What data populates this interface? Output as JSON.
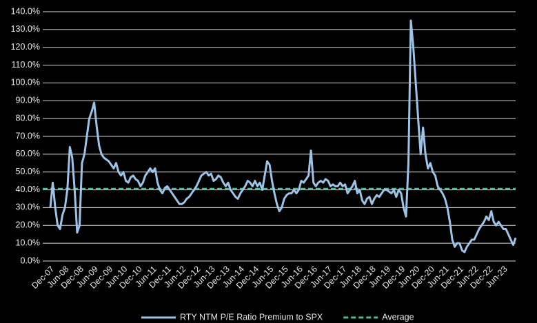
{
  "chart_data": {
    "type": "line",
    "categories": [
      "Dec-07",
      null,
      null,
      null,
      null,
      null,
      "Jun-08",
      null,
      null,
      null,
      null,
      null,
      "Dec-08",
      null,
      null,
      null,
      null,
      null,
      "Jun-09",
      null,
      null,
      null,
      null,
      null,
      "Dec-09",
      null,
      null,
      null,
      null,
      null,
      "Jun-10",
      null,
      null,
      null,
      null,
      null,
      "Dec-10",
      null,
      null,
      null,
      null,
      null,
      "Jun-11",
      null,
      null,
      null,
      null,
      null,
      "Dec-11",
      null,
      null,
      null,
      null,
      null,
      "Jun-12",
      null,
      null,
      null,
      null,
      null,
      "Dec-12",
      null,
      null,
      null,
      null,
      null,
      "Jun-13",
      null,
      null,
      null,
      null,
      null,
      "Dec-13",
      null,
      null,
      null,
      null,
      null,
      "Jun-14",
      null,
      null,
      null,
      null,
      null,
      "Dec-14",
      null,
      null,
      null,
      null,
      null,
      "Jun-15",
      null,
      null,
      null,
      null,
      null,
      "Dec-15",
      null,
      null,
      null,
      null,
      null,
      "Jun-16",
      null,
      null,
      null,
      null,
      null,
      "Dec-16",
      null,
      null,
      null,
      null,
      null,
      "Jun-17",
      null,
      null,
      null,
      null,
      null,
      "Dec-17",
      null,
      null,
      null,
      null,
      null,
      "Jun-18",
      null,
      null,
      null,
      null,
      null,
      "Dec-18",
      null,
      null,
      null,
      null,
      null,
      "Jun-19",
      null,
      null,
      null,
      null,
      null,
      "Dec-19",
      null,
      null,
      null,
      null,
      null,
      "Jun-20",
      null,
      null,
      null,
      null,
      null,
      "Dec-20",
      null,
      null,
      null,
      null,
      null,
      "Jun-21",
      null,
      null,
      null,
      null,
      null,
      "Dec-21",
      null,
      null,
      null,
      null,
      null,
      "Jun-22",
      null,
      null,
      null,
      null,
      null,
      "Dec-22",
      null,
      null,
      null,
      null,
      null,
      "Jun-23",
      null,
      null,
      null,
      null,
      null
    ],
    "series": [
      {
        "name": "RTY NTM P/E Ratio Premium to SPX",
        "color": "#9dc3e6",
        "values": [
          30,
          44,
          30,
          20,
          18,
          26,
          30,
          40,
          64,
          58,
          40,
          16,
          20,
          55,
          60,
          70,
          80,
          84,
          89,
          76,
          65,
          60,
          58,
          57,
          56,
          54,
          52,
          55,
          50,
          48,
          50,
          45,
          44,
          47,
          48,
          46,
          45,
          42,
          44,
          48,
          50,
          52,
          50,
          52,
          44,
          40,
          38,
          41,
          42,
          40,
          38,
          36,
          34,
          32,
          32,
          33,
          35,
          36,
          38,
          40,
          42,
          45,
          48,
          49,
          50,
          48,
          49,
          45,
          46,
          48,
          47,
          44,
          42,
          44,
          40,
          38,
          36,
          35,
          38,
          40,
          42,
          45,
          44,
          42,
          45,
          42,
          44,
          40,
          48,
          56,
          54,
          45,
          38,
          32,
          28,
          30,
          35,
          37,
          38,
          38,
          40,
          38,
          40,
          45,
          44,
          46,
          48,
          62,
          44,
          42,
          44,
          45,
          44,
          46,
          45,
          42,
          43,
          42,
          42,
          44,
          42,
          43,
          38,
          40,
          42,
          45,
          38,
          40,
          34,
          32,
          35,
          36,
          32,
          35,
          37,
          36,
          38,
          40,
          40,
          39,
          38,
          40,
          36,
          40,
          38,
          30,
          25,
          55,
          135,
          120,
          100,
          80,
          60,
          75,
          60,
          52,
          55,
          50,
          48,
          42,
          40,
          38,
          35,
          30,
          22,
          12,
          8,
          10,
          10,
          6,
          5,
          8,
          10,
          12,
          12,
          15,
          18,
          20,
          22,
          25,
          23,
          28,
          22,
          20,
          22,
          20,
          18,
          18,
          15,
          12,
          9,
          13
        ]
      }
    ],
    "hlines": [
      {
        "name": "Average",
        "value": 40.5,
        "color": "#4fb89a",
        "dash": true
      }
    ],
    "ylim": [
      0,
      140
    ],
    "yticks": [
      {
        "value": 0,
        "label": "0.0%"
      },
      {
        "value": 10,
        "label": "10.0%"
      },
      {
        "value": 20,
        "label": "20.0%"
      },
      {
        "value": 30,
        "label": "30.0%"
      },
      {
        "value": 40,
        "label": "40.0%"
      },
      {
        "value": 50,
        "label": "50.0%"
      },
      {
        "value": 60,
        "label": "60.0%"
      },
      {
        "value": 70,
        "label": "70.0%"
      },
      {
        "value": 80,
        "label": "80.0%"
      },
      {
        "value": 90,
        "label": "90.0%"
      },
      {
        "value": 100,
        "label": "100.0%"
      },
      {
        "value": 110,
        "label": "110.0%"
      },
      {
        "value": 120,
        "label": "120.0%"
      },
      {
        "value": 130,
        "label": "130.0%"
      },
      {
        "value": 140,
        "label": "140.0%"
      }
    ],
    "grid": true,
    "legend": "bottom"
  }
}
